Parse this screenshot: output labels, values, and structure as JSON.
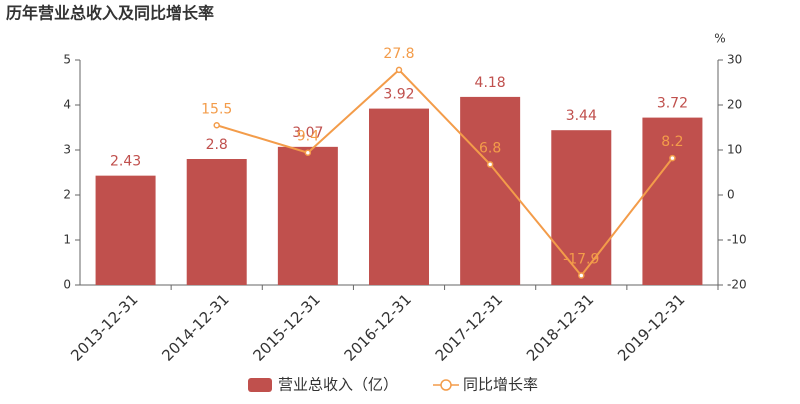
{
  "chart_data": {
    "type": "bar",
    "title": "历年营业总收入及同比增长率",
    "categories": [
      "2013-12-31",
      "2014-12-31",
      "2015-12-31",
      "2016-12-31",
      "2017-12-31",
      "2018-12-31",
      "2019-12-31"
    ],
    "series": [
      {
        "name": "营业总收入（亿）",
        "type": "bar",
        "color": "#c0504d",
        "label_color": "#c0504d",
        "values": [
          2.43,
          2.8,
          3.07,
          3.92,
          4.18,
          3.44,
          3.72
        ]
      },
      {
        "name": "同比增长率",
        "type": "line",
        "axis": "y2",
        "color": "#f39c4a",
        "label_color": "#f39c4a",
        "values": [
          null,
          15.5,
          9.4,
          27.8,
          6.8,
          -17.9,
          8.2
        ]
      }
    ],
    "ylim": [
      0,
      5
    ],
    "yticks": [
      0,
      1,
      2,
      3,
      4,
      5
    ],
    "y2lim": [
      -20,
      30
    ],
    "y2ticks": [
      -20,
      -10,
      0,
      10,
      20,
      30
    ],
    "y2_unit": "%"
  }
}
